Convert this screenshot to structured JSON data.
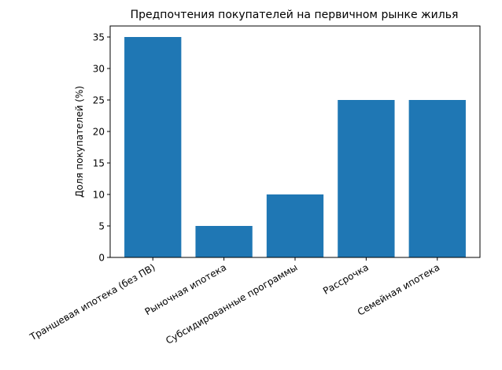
{
  "chart_data": {
    "type": "bar",
    "title": "Предпочтения покупателей на первичном рынке жилья",
    "xlabel": "",
    "ylabel": "Доля покупателей (%)",
    "categories": [
      "Траншевая ипотека (без ПВ)",
      "Рыночная ипотека",
      "Субсидированные программы",
      "Рассрочка",
      "Семейная ипотека"
    ],
    "values": [
      35,
      5,
      10,
      25,
      25
    ],
    "ylim": [
      0,
      36.75
    ],
    "yticks": [
      0,
      5,
      10,
      15,
      20,
      25,
      30,
      35
    ],
    "bar_color": "#1f77b4",
    "grid": false,
    "legend": "none"
  }
}
